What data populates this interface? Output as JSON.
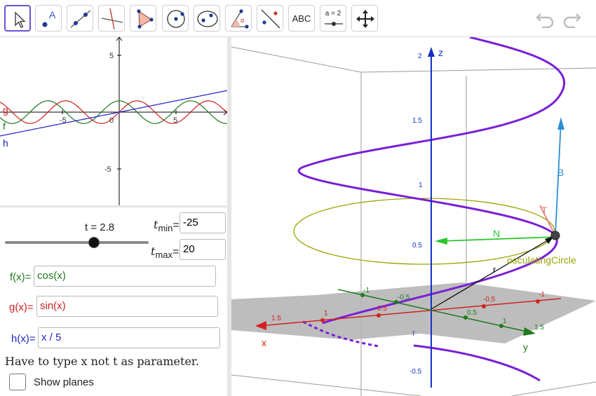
{
  "toolbar": {
    "tools": [
      {
        "name": "move"
      },
      {
        "name": "point",
        "label": "A"
      },
      {
        "name": "line"
      },
      {
        "name": "perpendicular-line"
      },
      {
        "name": "polygon"
      },
      {
        "name": "circle-center-point"
      },
      {
        "name": "ellipse"
      },
      {
        "name": "angle",
        "label": "α"
      },
      {
        "name": "reflect"
      },
      {
        "name": "text",
        "label": "ABC"
      },
      {
        "name": "slider",
        "label": "a = 2"
      },
      {
        "name": "move-graphics-view"
      }
    ],
    "undo": "undo",
    "redo": "redo"
  },
  "graphics2d": {
    "x_ticks": [
      "-5",
      "0",
      "5"
    ],
    "y_ticks": [
      "5",
      "-5"
    ],
    "labels": {
      "g": "g",
      "f": "f",
      "h": "h"
    },
    "colors": {
      "f": "#1e7a1e",
      "g": "#cc1f1f",
      "h": "#2323c8"
    }
  },
  "algebra": {
    "slider": {
      "label": "t = 2.8",
      "value": 2.8,
      "min": -25,
      "max": 20
    },
    "tmin": {
      "label_main": "t",
      "label_sub": "min",
      "eq": "=",
      "value": "-25"
    },
    "tmax": {
      "label_main": "t",
      "label_sub": "max",
      "eq": "=",
      "value": "20"
    },
    "f": {
      "label": "f(x)=",
      "value": "cos(x)",
      "color": "#1e7a1e"
    },
    "g": {
      "label": "g(x)=",
      "value": "sin(x)",
      "color": "#cc1f1f"
    },
    "h": {
      "label": "h(x)=",
      "value": "x / 5",
      "color": "#2323c8"
    },
    "note": "Have to type x not t as parameter.",
    "show_planes": {
      "label": "Show planes",
      "checked": false
    }
  },
  "graphics3d": {
    "z_ticks": [
      "2",
      "1.5",
      "1",
      "0.5",
      "-0.5"
    ],
    "axis_labels": {
      "x": "x",
      "y": "y",
      "z": "z"
    },
    "x_ticks": [
      "1.5",
      "1",
      "0.5",
      "-0.5",
      "-1"
    ],
    "y_ticks": [
      "-1",
      "-0.5",
      "0.5",
      "1",
      "1.5"
    ],
    "vector_labels": {
      "B": "B",
      "T": "T",
      "N": "N",
      "r_big": "r",
      "r_small": "r"
    },
    "osculating_label": "osculatingCircle",
    "colors": {
      "helix": "#7a1fd6",
      "x": "#d42020",
      "y": "#1e7a1e",
      "z": "#1530c8",
      "B": "#2b8fd6",
      "T": "#e87a70",
      "N": "#2ec72e",
      "circle": "#9aa400"
    }
  }
}
